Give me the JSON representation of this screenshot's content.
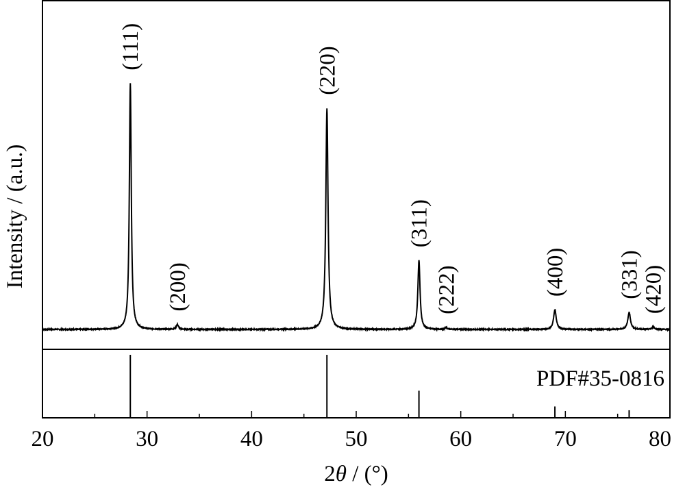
{
  "chart_data": {
    "type": "line",
    "xlabel_main": "2",
    "xlabel_theta": "θ",
    "xlabel_unit": " / (°)",
    "ylabel": "Intensity / (a.u.)",
    "xlim": [
      20,
      80
    ],
    "ylim": [
      0,
      100
    ],
    "x_ticks": [
      20,
      30,
      40,
      50,
      60,
      70,
      80
    ],
    "x_tick_labels": [
      "20",
      "30",
      "40",
      "50",
      "60",
      "70",
      "80"
    ],
    "baseline": 2,
    "peaks": [
      {
        "x": 28.4,
        "y": 100,
        "width": 0.22,
        "label": "(111)"
      },
      {
        "x": 32.9,
        "y": 2,
        "width": 0.25,
        "label": "(200)"
      },
      {
        "x": 47.2,
        "y": 90,
        "width": 0.25,
        "label": "(220)"
      },
      {
        "x": 56.0,
        "y": 28,
        "width": 0.25,
        "label": "(311)"
      },
      {
        "x": 58.6,
        "y": 0.8,
        "width": 0.25,
        "label": "(222)"
      },
      {
        "x": 69.0,
        "y": 8,
        "width": 0.3,
        "label": "(400)"
      },
      {
        "x": 76.1,
        "y": 7,
        "width": 0.3,
        "label": "(331)"
      },
      {
        "x": 78.4,
        "y": 1,
        "width": 0.3,
        "label": "(420)"
      }
    ],
    "reference": {
      "name": "PDF#35-0816",
      "lines": [
        {
          "x": 28.4,
          "rel": 100
        },
        {
          "x": 47.2,
          "rel": 100
        },
        {
          "x": 56.0,
          "rel": 43
        },
        {
          "x": 69.0,
          "rel": 18
        },
        {
          "x": 76.1,
          "rel": 12
        }
      ]
    }
  }
}
